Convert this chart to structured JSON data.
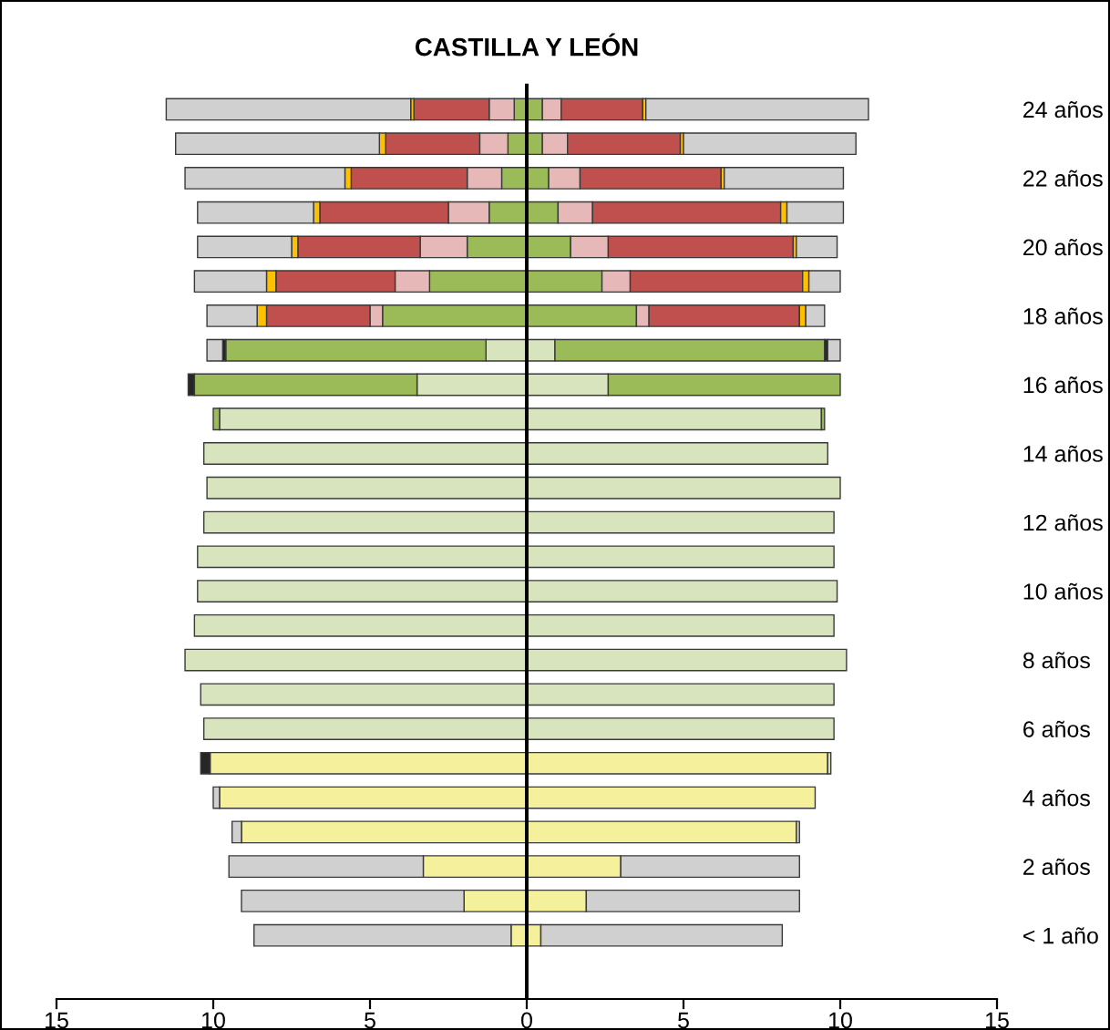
{
  "chart_data": {
    "type": "bar",
    "orientation": "horizontal",
    "stacked": true,
    "title": "CASTILLA Y LEÓN",
    "categories": [
      "24 años",
      null,
      "22 años",
      null,
      "20 años",
      null,
      "18 años",
      null,
      "16 años",
      null,
      "14 años",
      null,
      "12 años",
      null,
      "10 años",
      null,
      "8 años",
      null,
      "6 años",
      null,
      "4 años",
      null,
      "2 años",
      null,
      "< 1 año"
    ],
    "series": [
      {
        "color": "#f5f09b",
        "values": [
          null,
          null,
          null,
          null,
          null,
          null,
          null,
          null,
          null,
          null,
          null,
          null,
          null,
          null,
          null,
          null,
          null,
          null,
          null,
          -10.1,
          -9.8,
          -9.1,
          -3.3,
          -2.0,
          -0.5
        ]
      },
      {
        "color": "#d7e4bd",
        "values": [
          null,
          null,
          null,
          null,
          null,
          null,
          null,
          -1.3,
          -3.5,
          -9.8,
          -10.3,
          -10.2,
          -10.3,
          -10.5,
          -10.5,
          -10.6,
          -10.9,
          -10.4,
          -10.3,
          null,
          null,
          null,
          null,
          null,
          null
        ]
      },
      {
        "color": "#9bbb59",
        "values": [
          -0.4,
          -0.6,
          -0.8,
          -1.2,
          -1.9,
          -3.1,
          -4.6,
          -8.3,
          -7.1,
          -0.2,
          null,
          null,
          null,
          null,
          null,
          null,
          null,
          null,
          null,
          null,
          null,
          null,
          null,
          null,
          null
        ]
      },
      {
        "color": "#e6b9b8",
        "values": [
          -0.8,
          -0.9,
          -1.1,
          -1.3,
          -1.5,
          -1.1,
          -0.4,
          null,
          null,
          null,
          null,
          null,
          null,
          null,
          null,
          null,
          null,
          null,
          null,
          null,
          null,
          null,
          null,
          null,
          null
        ]
      },
      {
        "color": "#c0504d",
        "values": [
          -2.4,
          -3.0,
          -3.7,
          -4.1,
          -3.9,
          -3.8,
          -3.3,
          null,
          null,
          null,
          null,
          null,
          null,
          null,
          null,
          null,
          null,
          null,
          null,
          null,
          null,
          null,
          null,
          null,
          null
        ]
      },
      {
        "color": "#ffc000",
        "values": [
          -0.1,
          -0.2,
          -0.2,
          -0.2,
          -0.2,
          -0.3,
          -0.3,
          null,
          null,
          null,
          null,
          null,
          null,
          null,
          null,
          null,
          null,
          null,
          null,
          null,
          null,
          null,
          null,
          null,
          null
        ]
      },
      {
        "color": "#262626",
        "values": [
          null,
          null,
          null,
          null,
          null,
          null,
          null,
          -0.1,
          -0.2,
          null,
          null,
          null,
          null,
          null,
          null,
          null,
          null,
          null,
          null,
          -0.3,
          null,
          null,
          null,
          null,
          null
        ]
      },
      {
        "color": "#d0d0d0",
        "values": [
          -7.8,
          -6.5,
          -5.1,
          -3.7,
          -3.0,
          -2.3,
          -1.6,
          -0.5,
          null,
          null,
          null,
          null,
          null,
          null,
          null,
          null,
          null,
          null,
          null,
          null,
          -0.2,
          -0.3,
          -6.2,
          -7.1,
          -8.2
        ]
      },
      {
        "color": "#f5f09b",
        "values": [
          null,
          null,
          null,
          null,
          null,
          null,
          null,
          null,
          null,
          null,
          null,
          null,
          null,
          null,
          null,
          null,
          null,
          null,
          null,
          9.6,
          9.2,
          8.6,
          3.0,
          1.9,
          0.45
        ]
      },
      {
        "color": "#d7e4bd",
        "values": [
          null,
          null,
          null,
          null,
          null,
          null,
          null,
          0.9,
          2.6,
          9.4,
          9.6,
          10.0,
          9.8,
          9.8,
          9.9,
          9.8,
          10.2,
          9.8,
          9.8,
          0.1,
          null,
          null,
          null,
          null,
          null
        ]
      },
      {
        "color": "#9bbb59",
        "values": [
          0.5,
          0.5,
          0.7,
          1.0,
          1.4,
          2.4,
          3.5,
          8.6,
          7.4,
          0.1,
          null,
          null,
          null,
          null,
          null,
          null,
          null,
          null,
          null,
          null,
          null,
          null,
          null,
          null,
          null
        ]
      },
      {
        "color": "#e6b9b8",
        "values": [
          0.6,
          0.8,
          1.0,
          1.1,
          1.2,
          0.9,
          0.4,
          null,
          null,
          null,
          null,
          null,
          null,
          null,
          null,
          null,
          null,
          null,
          null,
          null,
          null,
          null,
          null,
          null,
          null
        ]
      },
      {
        "color": "#c0504d",
        "values": [
          2.6,
          3.6,
          4.5,
          6.0,
          5.9,
          5.5,
          4.8,
          null,
          null,
          null,
          null,
          null,
          null,
          null,
          null,
          null,
          null,
          null,
          null,
          null,
          null,
          null,
          null,
          null,
          null
        ]
      },
      {
        "color": "#ffc000",
        "values": [
          0.1,
          0.1,
          0.1,
          0.2,
          0.1,
          0.2,
          0.2,
          null,
          null,
          null,
          null,
          null,
          null,
          null,
          null,
          null,
          null,
          null,
          null,
          null,
          null,
          null,
          null,
          null,
          null
        ]
      },
      {
        "color": "#262626",
        "values": [
          null,
          null,
          null,
          null,
          null,
          null,
          null,
          0.1,
          null,
          null,
          null,
          null,
          null,
          null,
          null,
          null,
          null,
          null,
          null,
          null,
          null,
          null,
          null,
          null,
          null
        ]
      },
      {
        "color": "#d0d0d0",
        "values": [
          7.1,
          5.5,
          3.8,
          1.8,
          1.3,
          1.0,
          0.6,
          0.4,
          null,
          null,
          null,
          null,
          null,
          null,
          null,
          null,
          null,
          null,
          null,
          null,
          null,
          0.1,
          5.7,
          6.8,
          7.7
        ]
      }
    ],
    "xlim": [
      -15,
      15
    ],
    "xticks": [
      {
        "value": -15,
        "label": "15"
      },
      {
        "value": -10,
        "label": "10"
      },
      {
        "value": -5,
        "label": "5"
      },
      0,
      5,
      10,
      15
    ],
    "ref_lines": [
      {
        "axis": "x",
        "value": 0,
        "color": "#000000"
      }
    ],
    "grid": false,
    "legend": false
  }
}
